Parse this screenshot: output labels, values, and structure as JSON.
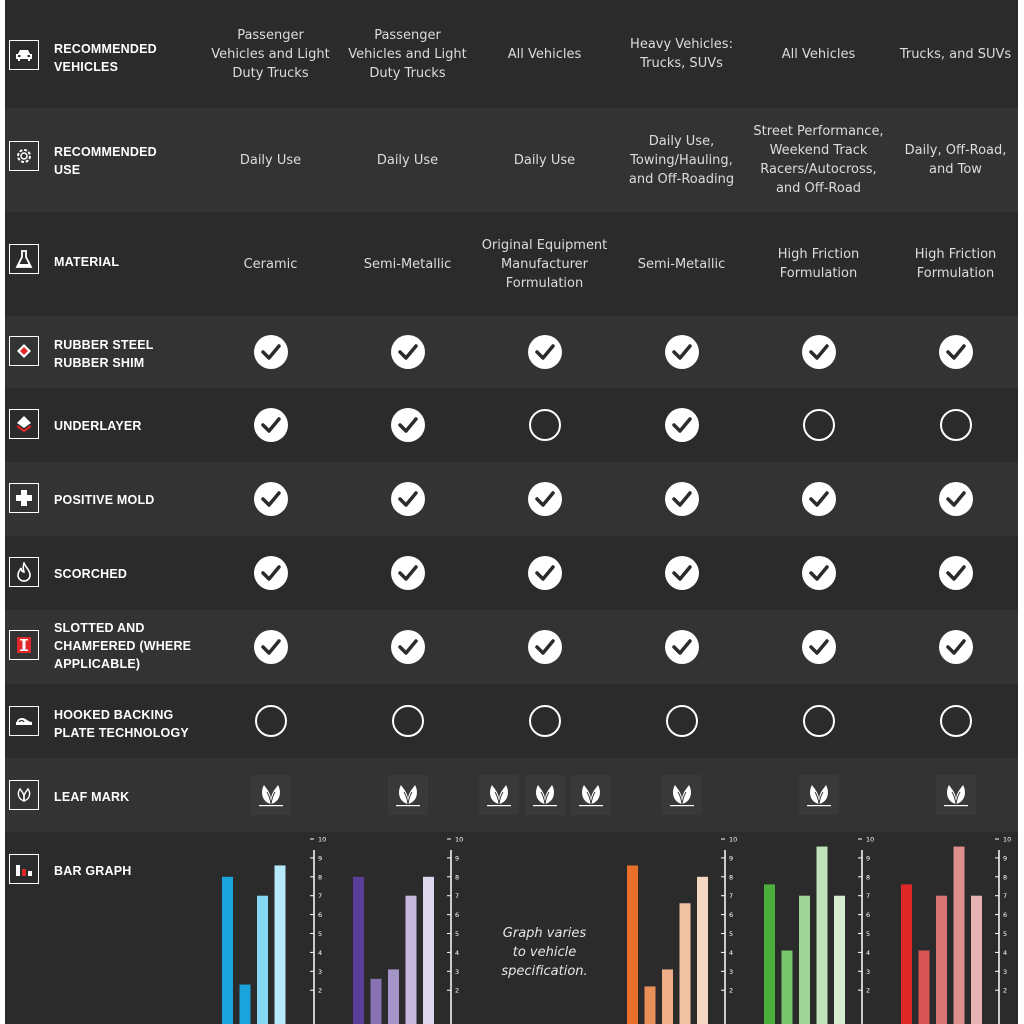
{
  "rows": [
    {
      "label": "RECOMMENDED\nVEHICLES",
      "icon": "car-icon",
      "cells": [
        "Passenger\nVehicles and Light\nDuty Trucks",
        "Passenger\nVehicles and Light\nDuty Trucks",
        "All Vehicles",
        "Heavy Vehicles:\nTrucks, SUVs",
        "All Vehicles",
        "Trucks, and SUVs"
      ]
    },
    {
      "label": "RECOMMENDED\nUSE",
      "icon": "gear-icon",
      "cells": [
        "Daily Use",
        "Daily Use",
        "Daily Use",
        "Daily Use,\nTowing/Hauling,\nand Off-Roading",
        "Street Performance,\nWeekend Track\nRacers/Autocross,\nand Off-Road",
        "Daily, Off-Road,\nand Tow"
      ]
    },
    {
      "label": "MATERIAL",
      "icon": "flask-icon",
      "cells": [
        "Ceramic",
        "Semi-Metallic",
        "Original Equipment\nManufacturer\nFormulation",
        "Semi-Metallic",
        "High Friction\nFormulation",
        "High Friction\nFormulation"
      ]
    },
    {
      "label": "RUBBER STEEL\nRUBBER SHIM",
      "icon": "shim-icon",
      "checks": [
        true,
        true,
        true,
        true,
        true,
        true
      ]
    },
    {
      "label": "UNDERLAYER",
      "icon": "underlayer-icon",
      "checks": [
        true,
        true,
        false,
        true,
        false,
        false
      ]
    },
    {
      "label": "POSITIVE MOLD",
      "icon": "plus-icon",
      "checks": [
        true,
        true,
        true,
        true,
        true,
        true
      ]
    },
    {
      "label": "SCORCHED",
      "icon": "flame-icon",
      "checks": [
        true,
        true,
        true,
        true,
        true,
        true
      ]
    },
    {
      "label": "SLOTTED AND\nCHAMFERED (WHERE\nAPPLICABLE)",
      "icon": "slotted-pad-icon",
      "checks": [
        true,
        true,
        true,
        true,
        true,
        true
      ]
    },
    {
      "label": "HOOKED BACKING\nPLATE TECHNOLOGY",
      "icon": "hooked-plate-icon",
      "checks": [
        false,
        false,
        false,
        false,
        false,
        false
      ]
    },
    {
      "label": "LEAF MARK",
      "icon": "leaf-icon",
      "leaves": [
        [
          "B"
        ],
        [
          "N"
        ],
        [
          "A",
          "B",
          "N"
        ],
        [
          "N"
        ],
        [
          "N"
        ],
        [
          "N"
        ]
      ]
    },
    {
      "label": "BAR GRAPH",
      "icon": "bar-graph-icon"
    }
  ],
  "bar_graph_note": "Graph varies\nto vehicle\nspecification.",
  "axis_ticks": [
    "10",
    "9",
    "8",
    "7",
    "6",
    "5",
    "4",
    "3",
    "2"
  ],
  "chart_data": [
    {
      "type": "bar",
      "series": [
        {
          "color": "#1aa3dc",
          "values": [
            8,
            2.3,
            7,
            8.6
          ]
        }
      ],
      "colors": [
        "#1aa3dc",
        "#1aa3dc",
        "#86d8f2",
        "#b6eafa"
      ],
      "ylim": [
        0,
        10
      ],
      "ticks": [
        10,
        9,
        8,
        7,
        6,
        5,
        4,
        3,
        2
      ]
    },
    {
      "type": "bar",
      "series": [
        {
          "color": "#5a3f9a",
          "values": [
            8,
            2.6,
            3.1,
            7,
            8
          ]
        }
      ],
      "colors": [
        "#5a3f9a",
        "#8772b3",
        "#a594c6",
        "#c4b8dc",
        "#ddd6ec"
      ],
      "ylim": [
        0,
        10
      ],
      "ticks": [
        10,
        9,
        8,
        7,
        6,
        5,
        4,
        3,
        2
      ]
    },
    null,
    {
      "type": "bar",
      "series": [
        {
          "color": "#e8702a",
          "values": [
            8.6,
            2.2,
            3.1,
            6.6,
            8
          ]
        }
      ],
      "colors": [
        "#e8702a",
        "#eb8f5a",
        "#efad88",
        "#f2c2a5",
        "#f6d7c4"
      ],
      "ylim": [
        0,
        10
      ],
      "ticks": [
        10,
        9,
        8,
        7,
        6,
        5,
        4,
        3,
        2
      ]
    },
    {
      "type": "bar",
      "series": [
        {
          "color": "#4caf3c",
          "values": [
            7.6,
            4.1,
            7,
            9.6,
            7
          ]
        }
      ],
      "colors": [
        "#4caf3c",
        "#77c46c",
        "#9fd596",
        "#bfe3b8",
        "#d5eccf"
      ],
      "ylim": [
        0,
        10
      ],
      "ticks": [
        10,
        9,
        8,
        7,
        6,
        5,
        4,
        3,
        2
      ]
    },
    {
      "type": "bar",
      "series": [
        {
          "color": "#e02828",
          "values": [
            7.6,
            4.1,
            7,
            9.6,
            7
          ]
        }
      ],
      "colors": [
        "#e02828",
        "#d75555",
        "#d97474",
        "#e08f8f",
        "#e9b3b3"
      ],
      "ylim": [
        0,
        10
      ],
      "ticks": [
        10,
        9,
        8,
        7,
        6,
        5,
        4,
        3,
        2
      ]
    }
  ]
}
